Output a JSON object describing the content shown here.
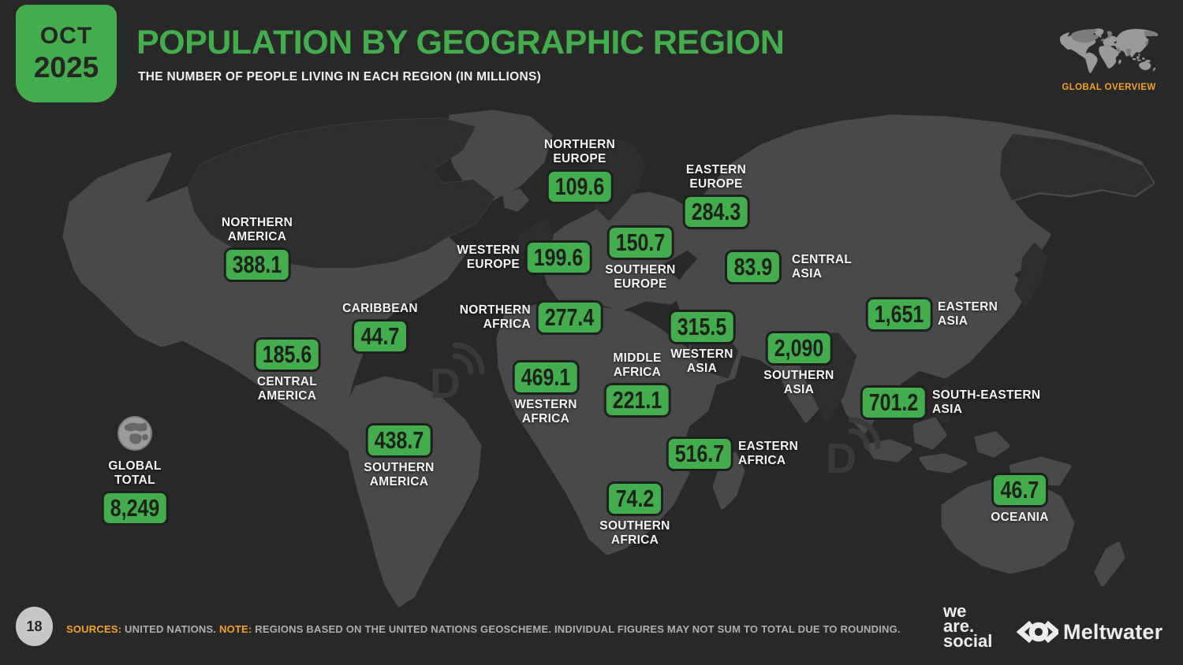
{
  "header": {
    "date_line1": "OCT",
    "date_line2": "2025",
    "title": "POPULATION BY GEOGRAPHIC REGION",
    "subtitle": "THE NUMBER OF PEOPLE LIVING IN EACH REGION (IN MILLIONS)",
    "overview_label": "GLOBAL OVERVIEW"
  },
  "global_total": {
    "label": "GLOBAL\nTOTAL",
    "value": "8,249"
  },
  "regions": [
    {
      "id": "northern-europe",
      "label": "NORTHERN\nEUROPE",
      "value": "109.6"
    },
    {
      "id": "eastern-europe",
      "label": "EASTERN\nEUROPE",
      "value": "284.3"
    },
    {
      "id": "southern-europe",
      "label": "SOUTHERN\nEUROPE",
      "value": "150.7"
    },
    {
      "id": "western-europe",
      "label": "WESTERN\nEUROPE",
      "value": "199.6"
    },
    {
      "id": "central-asia",
      "label": "CENTRAL\nASIA",
      "value": "83.9"
    },
    {
      "id": "northern-america",
      "label": "NORTHERN\nAMERICA",
      "value": "388.1"
    },
    {
      "id": "caribbean",
      "label": "CARIBBEAN",
      "value": "44.7"
    },
    {
      "id": "northern-africa",
      "label": "NORTHERN\nAFRICA",
      "value": "277.4"
    },
    {
      "id": "western-asia",
      "label": "WESTERN\nASIA",
      "value": "315.5"
    },
    {
      "id": "eastern-asia",
      "label": "EASTERN\nASIA",
      "value": "1,651"
    },
    {
      "id": "central-america",
      "label": "CENTRAL\nAMERICA",
      "value": "185.6"
    },
    {
      "id": "southern-asia",
      "label": "SOUTHERN\nASIA",
      "value": "2,090"
    },
    {
      "id": "middle-africa",
      "label": "MIDDLE\nAFRICA",
      "value": "221.1"
    },
    {
      "id": "western-africa",
      "label": "WESTERN\nAFRICA",
      "value": "469.1"
    },
    {
      "id": "south-eastern-asia",
      "label": "SOUTH-EASTERN\nASIA",
      "value": "701.2"
    },
    {
      "id": "southern-america",
      "label": "SOUTHERN\nAMERICA",
      "value": "438.7"
    },
    {
      "id": "eastern-africa",
      "label": "EASTERN\nAFRICA",
      "value": "516.7"
    },
    {
      "id": "southern-africa",
      "label": "SOUTHERN\nAFRICA",
      "value": "74.2"
    },
    {
      "id": "oceania",
      "label": "OCEANIA",
      "value": "46.7"
    }
  ],
  "footer": {
    "page_number": "18",
    "sources_label": "SOURCES:",
    "sources_text": " UNITED NATIONS. ",
    "note_label": "NOTE:",
    "note_text": " REGIONS BASED ON THE UNITED NATIONS GEOSCHEME. INDIVIDUAL FIGURES MAY NOT SUM TO TOTAL DUE TO ROUNDING."
  },
  "logos": {
    "we_are_social": "we\nare.\nsocial",
    "meltwater": "Meltwater"
  },
  "colors": {
    "accent_green": "#43ad4d",
    "accent_orange": "#f4a226",
    "background": "#282828",
    "map_land_light": "#49494b",
    "map_land_dark": "#2e2e30",
    "label_text": "#f4f4f4",
    "badge_text": "#1e221d"
  },
  "chart_data": {
    "type": "table",
    "title": "Population by Geographic Region",
    "subtitle": "The number of people living in each region (in millions)",
    "unit": "millions of people",
    "categories": [
      "Northern Europe",
      "Eastern Europe",
      "Southern Europe",
      "Western Europe",
      "Central Asia",
      "Northern America",
      "Caribbean",
      "Northern Africa",
      "Western Asia",
      "Eastern Asia",
      "Central America",
      "Southern Asia",
      "Middle Africa",
      "Western Africa",
      "South-Eastern Asia",
      "Southern America",
      "Eastern Africa",
      "Southern Africa",
      "Oceania"
    ],
    "values": [
      109.6,
      284.3,
      150.7,
      199.6,
      83.9,
      388.1,
      44.7,
      277.4,
      315.5,
      1651,
      185.6,
      2090,
      221.1,
      469.1,
      701.2,
      438.7,
      516.7,
      74.2,
      46.7
    ],
    "global_total": 8249,
    "layout": "values shown as badges positioned over a world map"
  }
}
